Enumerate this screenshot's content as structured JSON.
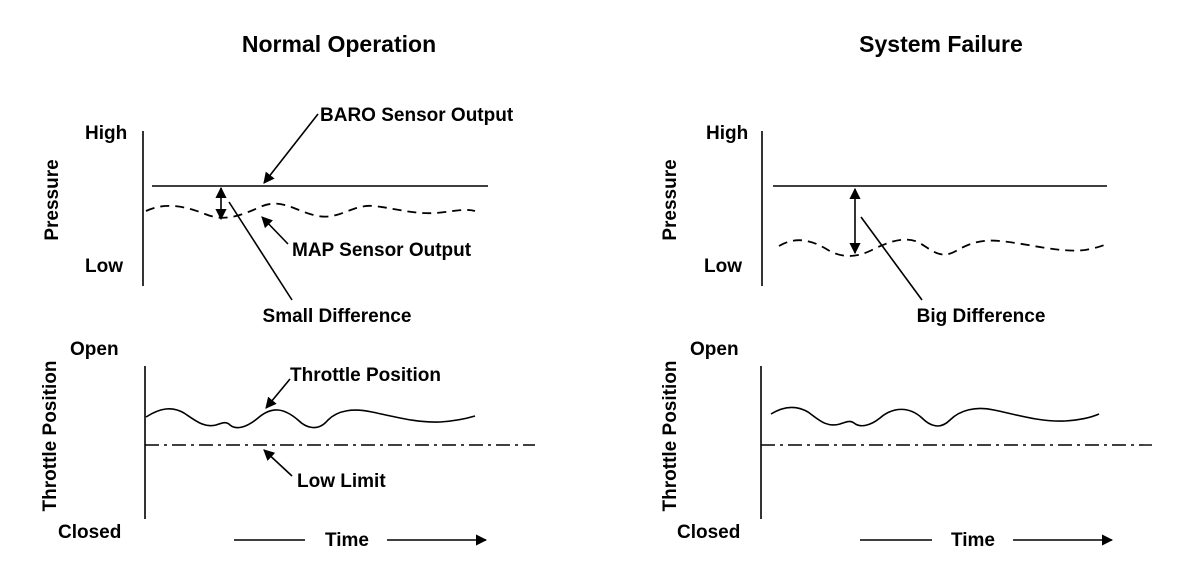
{
  "left_panel": {
    "title": "Normal Operation",
    "pressure_axis": {
      "label": "Pressure",
      "high": "High",
      "low": "Low"
    },
    "throttle_axis": {
      "label": "Throttle Position",
      "open": "Open",
      "closed": "Closed"
    },
    "annotations": {
      "baro": "BARO Sensor Output",
      "map": "MAP Sensor Output",
      "difference": "Small Difference",
      "throttle": "Throttle Position",
      "low_limit": "Low Limit"
    },
    "time_label": "Time"
  },
  "right_panel": {
    "title": "System Failure",
    "pressure_axis": {
      "label": "Pressure",
      "high": "High",
      "low": "Low"
    },
    "throttle_axis": {
      "label": "Throttle Position",
      "open": "Open",
      "closed": "Closed"
    },
    "annotations": {
      "difference": "Big Difference"
    },
    "time_label": "Time"
  }
}
